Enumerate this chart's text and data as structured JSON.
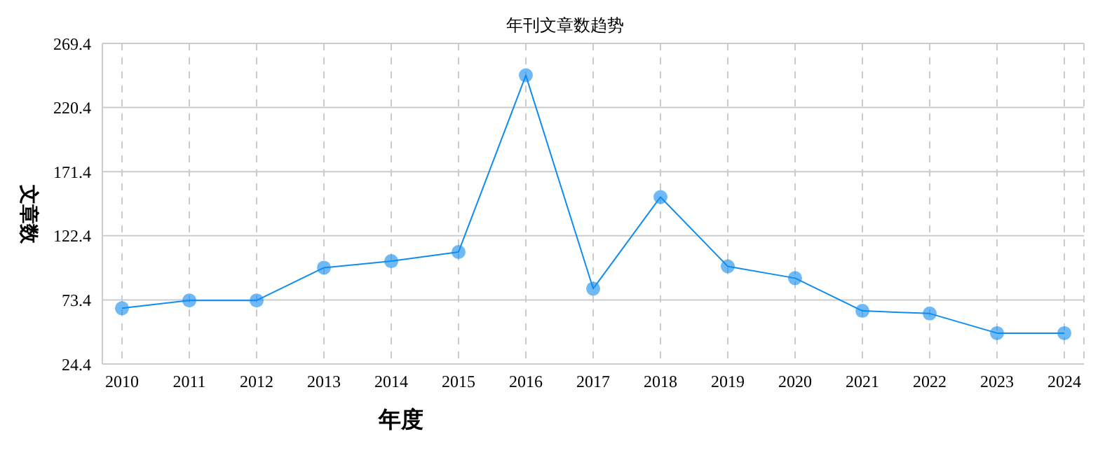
{
  "chart_data": {
    "type": "line",
    "title": "年刊文章数趋势",
    "xlabel": "年度",
    "ylabel": "文章数",
    "categories": [
      "2010",
      "2011",
      "2012",
      "2013",
      "2014",
      "2015",
      "2016",
      "2017",
      "2018",
      "2019",
      "2020",
      "2021",
      "2022",
      "2023",
      "2024"
    ],
    "series": [
      {
        "color": "#0f8cf0",
        "values": [
          67,
          73,
          73,
          98,
          103,
          110,
          245,
          82,
          152,
          99,
          90,
          65,
          63,
          48,
          48
        ]
      }
    ],
    "ylim": [
      24.4,
      269.4
    ],
    "yticks": [
      24.4,
      73.4,
      122.4,
      171.4,
      220.4,
      269.4
    ],
    "grid": true,
    "marker": "circle",
    "line_style": "solid",
    "legend": false
  }
}
